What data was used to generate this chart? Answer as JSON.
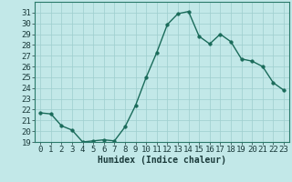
{
  "x": [
    0,
    1,
    2,
    3,
    4,
    5,
    6,
    7,
    8,
    9,
    10,
    11,
    12,
    13,
    14,
    15,
    16,
    17,
    18,
    19,
    20,
    21,
    22,
    23
  ],
  "y": [
    21.7,
    21.6,
    20.5,
    20.1,
    19.0,
    19.1,
    19.2,
    19.1,
    20.4,
    22.4,
    25.0,
    27.3,
    29.9,
    30.9,
    31.1,
    28.8,
    28.1,
    29.0,
    28.3,
    26.7,
    26.5,
    26.0,
    24.5,
    23.8
  ],
  "line_color": "#1a6b5a",
  "marker": "o",
  "markersize": 2.5,
  "linewidth": 1.0,
  "bg_color": "#c2e8e8",
  "grid_color": "#9ecece",
  "xlabel": "Humidex (Indice chaleur)",
  "ylim": [
    19,
    32
  ],
  "xlim": [
    -0.5,
    23.5
  ],
  "yticks": [
    19,
    20,
    21,
    22,
    23,
    24,
    25,
    26,
    27,
    28,
    29,
    30,
    31
  ],
  "xticks": [
    0,
    1,
    2,
    3,
    4,
    5,
    6,
    7,
    8,
    9,
    10,
    11,
    12,
    13,
    14,
    15,
    16,
    17,
    18,
    19,
    20,
    21,
    22,
    23
  ],
  "xlabel_fontsize": 7,
  "tick_fontsize": 6.5
}
